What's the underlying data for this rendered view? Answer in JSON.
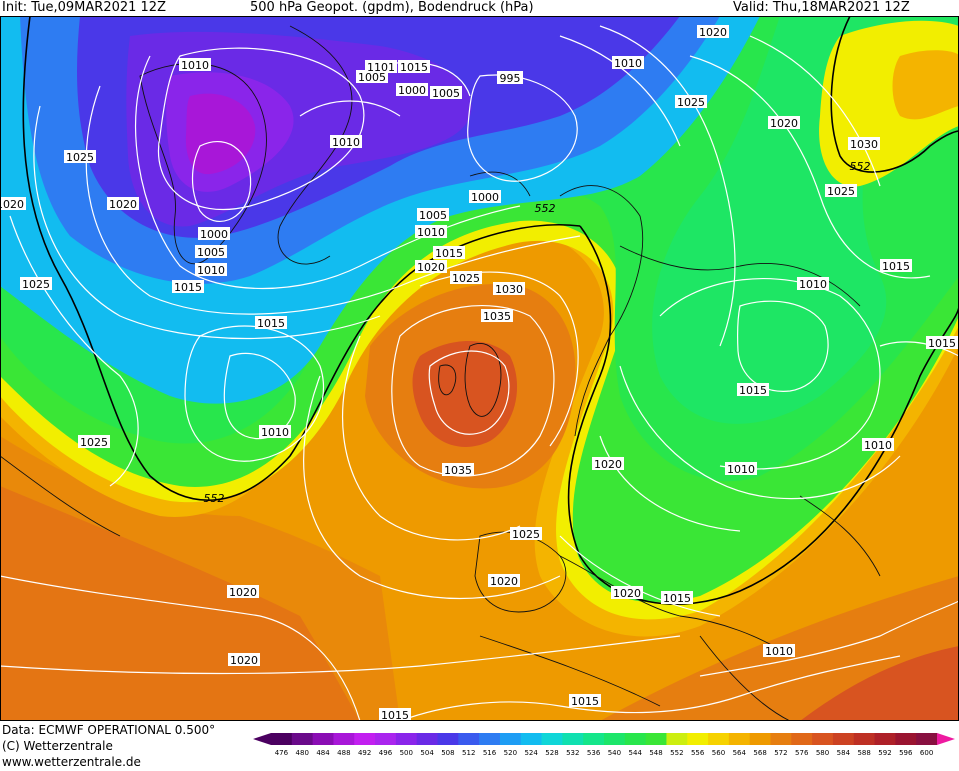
{
  "header": {
    "init": "Init: Tue,09MAR2021 12Z",
    "title": "500 hPa Geopot. (gpdm), Bodendruck (hPa)",
    "valid": "Valid: Thu,18MAR2021 12Z"
  },
  "footer": {
    "data_source": "Data: ECMWF OPERATIONAL 0.500°",
    "copyright": "(C) Wetterzentrale",
    "website": "www.wetterzentrale.de"
  },
  "legend": {
    "values": [
      "476",
      "480",
      "484",
      "488",
      "492",
      "496",
      "500",
      "504",
      "508",
      "512",
      "516",
      "520",
      "524",
      "528",
      "532",
      "536",
      "540",
      "544",
      "548",
      "552",
      "556",
      "560",
      "564",
      "568",
      "572",
      "576",
      "580",
      "584",
      "588",
      "592",
      "596",
      "600"
    ],
    "colors": [
      "#4b0060",
      "#6a0a8a",
      "#8a0db4",
      "#a817d8",
      "#c21ff0",
      "#aa25ee",
      "#8a25ea",
      "#6a2ae6",
      "#4a38e8",
      "#3a5aee",
      "#2e7cf2",
      "#1e9df4",
      "#12bcf0",
      "#10d6d8",
      "#10e0b0",
      "#14e68a",
      "#1ce66a",
      "#28e64c",
      "#3ae636",
      "#ccee10",
      "#f2ee00",
      "#f6d200",
      "#f4b400",
      "#ee9a00",
      "#e67e10",
      "#e06818",
      "#d85420",
      "#cc4222",
      "#be3024",
      "#ae2028",
      "#9a1430",
      "#881040"
    ]
  },
  "isobar_labels": [
    "1010",
    "1025",
    "1020",
    "1020",
    "1000",
    "1005",
    "1010",
    "1015",
    "1025",
    "1015",
    "1025",
    "1010",
    "1010",
    "1005",
    "1101",
    "1015",
    "1000",
    "1005",
    "995",
    "1010",
    "1000",
    "1005",
    "1010",
    "1015",
    "1020",
    "1025",
    "1030",
    "1035",
    "1035",
    "1025",
    "1020",
    "1015",
    "1020",
    "1015",
    "1020",
    "1025",
    "1020",
    "1030",
    "1025",
    "1015",
    "1010",
    "1015",
    "1015",
    "1010",
    "1020",
    "1010",
    "1010",
    "1020",
    "1020",
    "1015"
  ],
  "geopotential_labels": [
    "552",
    "552",
    "552"
  ]
}
